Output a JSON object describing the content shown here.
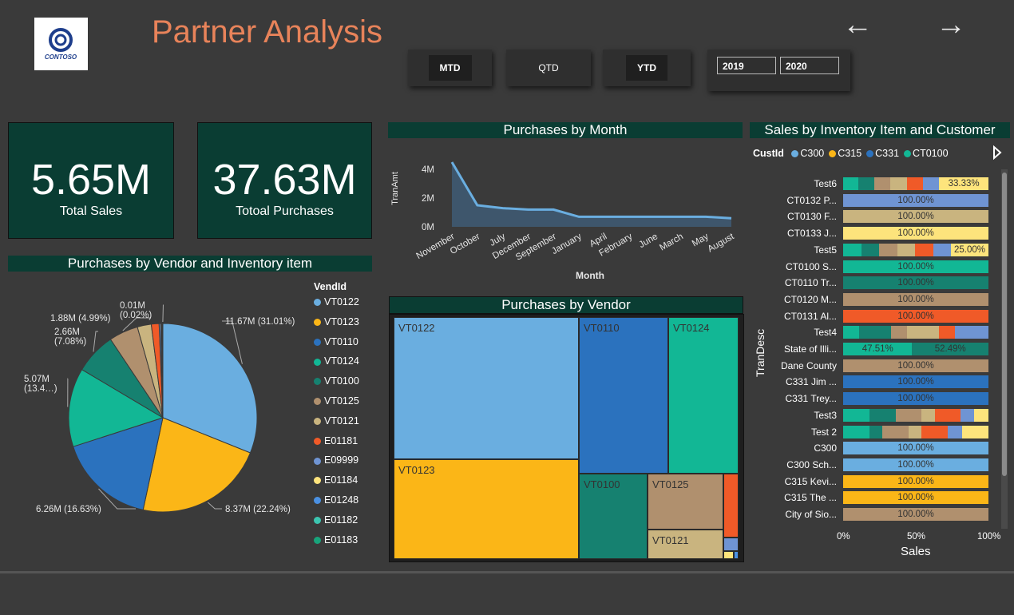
{
  "app": {
    "title": "Partner Analysis",
    "logo_text": "CONTOSO"
  },
  "nav": {
    "back_icon": "arrow-left-icon",
    "forward_icon": "arrow-right-icon",
    "back_glyph": "←",
    "forward_glyph": "→"
  },
  "period_buttons": [
    {
      "label": "MTD",
      "selected": true
    },
    {
      "label": "QTD",
      "selected": false
    },
    {
      "label": "YTD",
      "selected": true
    }
  ],
  "years": {
    "start": "2019",
    "end": "2020"
  },
  "kpis": [
    {
      "value": "5.65M",
      "label": "Total Sales"
    },
    {
      "value": "37.63M",
      "label": "Totoal Purchases"
    }
  ],
  "colors": {
    "VT0122": "#6aaee0",
    "VT0123": "#fbb617",
    "VT0110": "#2b72be",
    "VT0124": "#12b795",
    "VT0100": "#168170",
    "VT0125": "#b0906e",
    "VT0121": "#c9b47f",
    "E01181": "#f05a28",
    "E09999": "#6f94d3",
    "E01184": "#fde47c",
    "E01248": "#4a90e2",
    "E01182": "#3cc5b0",
    "E01183": "#18a47b",
    "header_bg": "#0a3d33",
    "title": "#e8835a"
  },
  "purchases_by_month": {
    "title": "Purchases by Month",
    "chart_data": {
      "type": "area",
      "x": [
        "November",
        "October",
        "July",
        "December",
        "September",
        "January",
        "April",
        "February",
        "June",
        "March",
        "May",
        "August"
      ],
      "values": [
        4.5,
        1.5,
        1.3,
        1.2,
        1.2,
        0.7,
        0.7,
        0.7,
        0.7,
        0.7,
        0.7,
        0.6
      ],
      "xlabel": "Month",
      "ylabel": "TranAmt",
      "yticks": [
        "0M",
        "2M",
        "4M"
      ],
      "ylim": [
        0,
        5
      ]
    }
  },
  "purchases_by_vendor_item": {
    "title": "Purchases by Vendor and Inventory item",
    "legend_title": "VendId",
    "chart_data": {
      "type": "pie",
      "categories": [
        "VT0122",
        "VT0123",
        "VT0110",
        "VT0124",
        "VT0100",
        "VT0125",
        "VT0121",
        "E01181",
        "E09999",
        "E01184",
        "E01248",
        "E01182",
        "E01183"
      ],
      "values": [
        11.67,
        8.37,
        6.26,
        5.07,
        2.66,
        1.88,
        0.9,
        0.5,
        0.1,
        0.06,
        0.04,
        0.03,
        0.01
      ],
      "data_labels": [
        {
          "cat": "VT0122",
          "text": "11.67M (31.01%)"
        },
        {
          "cat": "VT0123",
          "text": "8.37M (22.24%)"
        },
        {
          "cat": "VT0110",
          "text": "6.26M (16.63%)"
        },
        {
          "cat": "VT0124",
          "text": "5.07M",
          "text2": "(13.4…)"
        },
        {
          "cat": "VT0100",
          "text": "2.66M",
          "text2": "(7.08%)"
        },
        {
          "cat": "VT0125",
          "text": "1.88M (4.99%)"
        },
        {
          "cat": "E01183",
          "text": "0.01M",
          "text2": "(0.02%)"
        }
      ]
    }
  },
  "purchases_by_vendor": {
    "title": "Purchases by Vendor",
    "chart_data": {
      "type": "treemap",
      "categories": [
        "VT0122",
        "VT0123",
        "VT0110",
        "VT0124",
        "VT0100",
        "VT0125",
        "VT0121",
        "E01181",
        "E09999",
        "E01184",
        "E01248"
      ],
      "labels": [
        "VT0122",
        "VT0123",
        "VT0110",
        "VT0124",
        "VT0100",
        "VT0125",
        "VT0121"
      ]
    }
  },
  "sales_by_item_customer": {
    "title": "Sales by Inventory Item and Customer",
    "legend_title": "CustId",
    "legend": [
      "C300",
      "C315",
      "C331",
      "CT0100"
    ],
    "legend_colors": [
      "#6aaee0",
      "#fbb617",
      "#2b72be",
      "#12b795"
    ],
    "ylabel": "TranDesc",
    "xlabel": "Sales",
    "xticks": [
      "0%",
      "50%",
      "100%"
    ],
    "chart_data": {
      "type": "bar",
      "stacked_percent": true,
      "rows": [
        {
          "label": "Test6",
          "segments": [
            [
              "#12b795",
              0.1
            ],
            [
              "#168170",
              0.11
            ],
            [
              "#b0906e",
              0.11
            ],
            [
              "#c9b47f",
              0.11
            ],
            [
              "#f05a28",
              0.11
            ],
            [
              "#6f94d3",
              0.11
            ],
            [
              "#fde47c",
              0.3333
            ]
          ],
          "shown": [
            {
              "text": "33.33%",
              "at": 6
            }
          ]
        },
        {
          "label": "CT0132 P...",
          "segments": [
            [
              "#6f94d3",
              1
            ]
          ],
          "shown": [
            {
              "text": "100.00%",
              "at": 0
            }
          ]
        },
        {
          "label": "CT0130 F...",
          "segments": [
            [
              "#c9b47f",
              1
            ]
          ],
          "shown": [
            {
              "text": "100.00%",
              "at": 0
            }
          ]
        },
        {
          "label": "CT0133 J...",
          "segments": [
            [
              "#fde47c",
              1
            ]
          ],
          "shown": [
            {
              "text": "100.00%",
              "at": 0
            }
          ]
        },
        {
          "label": "Test5",
          "segments": [
            [
              "#12b795",
              0.12
            ],
            [
              "#168170",
              0.12
            ],
            [
              "#b0906e",
              0.12
            ],
            [
              "#c9b47f",
              0.12
            ],
            [
              "#f05a28",
              0.12
            ],
            [
              "#6f94d3",
              0.12
            ],
            [
              "#fde47c",
              0.25
            ]
          ],
          "shown": [
            {
              "text": "25.00%",
              "at": 6
            }
          ]
        },
        {
          "label": "CT0100 S...",
          "segments": [
            [
              "#12b795",
              1
            ]
          ],
          "shown": [
            {
              "text": "100.00%",
              "at": 0
            }
          ]
        },
        {
          "label": "CT0110 Tr...",
          "segments": [
            [
              "#168170",
              1
            ]
          ],
          "shown": [
            {
              "text": "100.00%",
              "at": 0
            }
          ]
        },
        {
          "label": "CT0120 M...",
          "segments": [
            [
              "#b0906e",
              1
            ]
          ],
          "shown": [
            {
              "text": "100.00%",
              "at": 0
            }
          ]
        },
        {
          "label": "CT0131 Al...",
          "segments": [
            [
              "#f05a28",
              1
            ]
          ],
          "shown": [
            {
              "text": "100.00%",
              "at": 0
            }
          ]
        },
        {
          "label": "Test4",
          "segments": [
            [
              "#12b795",
              0.11
            ],
            [
              "#168170",
              0.22
            ],
            [
              "#b0906e",
              0.11
            ],
            [
              "#c9b47f",
              0.22
            ],
            [
              "#f05a28",
              0.11
            ],
            [
              "#6f94d3",
              0.23
            ]
          ],
          "shown": []
        },
        {
          "label": "State of Illi...",
          "segments": [
            [
              "#12b795",
              0.4751
            ],
            [
              "#168170",
              0.5249
            ]
          ],
          "shown": [
            {
              "text": "47.51%",
              "at": 0
            },
            {
              "text": "52.49%",
              "at": 1
            }
          ]
        },
        {
          "label": "Dane County",
          "segments": [
            [
              "#b0906e",
              1
            ]
          ],
          "shown": [
            {
              "text": "100.00%",
              "at": 0
            }
          ]
        },
        {
          "label": "C331 Jim ...",
          "segments": [
            [
              "#2b72be",
              1
            ]
          ],
          "shown": [
            {
              "text": "100.00%",
              "at": 0
            }
          ]
        },
        {
          "label": "C331 Trey...",
          "segments": [
            [
              "#2b72be",
              1
            ]
          ],
          "shown": [
            {
              "text": "100.00%",
              "at": 0
            }
          ]
        },
        {
          "label": "Test3",
          "segments": [
            [
              "#12b795",
              0.18
            ],
            [
              "#168170",
              0.18
            ],
            [
              "#b0906e",
              0.18
            ],
            [
              "#c9b47f",
              0.09
            ],
            [
              "#f05a28",
              0.18
            ],
            [
              "#6f94d3",
              0.09
            ],
            [
              "#fde47c",
              0.1
            ]
          ],
          "shown": []
        },
        {
          "label": "Test 2",
          "segments": [
            [
              "#12b795",
              0.18
            ],
            [
              "#168170",
              0.09
            ],
            [
              "#b0906e",
              0.18
            ],
            [
              "#c9b47f",
              0.09
            ],
            [
              "#f05a28",
              0.18
            ],
            [
              "#6f94d3",
              0.1
            ],
            [
              "#fde47c",
              0.18
            ]
          ],
          "shown": []
        },
        {
          "label": "C300",
          "segments": [
            [
              "#6aaee0",
              1
            ]
          ],
          "shown": [
            {
              "text": "100.00%",
              "at": 0
            }
          ]
        },
        {
          "label": "C300 Sch...",
          "segments": [
            [
              "#6aaee0",
              1
            ]
          ],
          "shown": [
            {
              "text": "100.00%",
              "at": 0
            }
          ]
        },
        {
          "label": "C315 Kevi...",
          "segments": [
            [
              "#fbb617",
              1
            ]
          ],
          "shown": [
            {
              "text": "100.00%",
              "at": 0
            }
          ]
        },
        {
          "label": "C315 The ...",
          "segments": [
            [
              "#fbb617",
              1
            ]
          ],
          "shown": [
            {
              "text": "100.00%",
              "at": 0
            }
          ]
        },
        {
          "label": "City of Sio...",
          "segments": [
            [
              "#b0906e",
              1
            ]
          ],
          "shown": [
            {
              "text": "100.00%",
              "at": 0
            }
          ]
        }
      ]
    }
  }
}
